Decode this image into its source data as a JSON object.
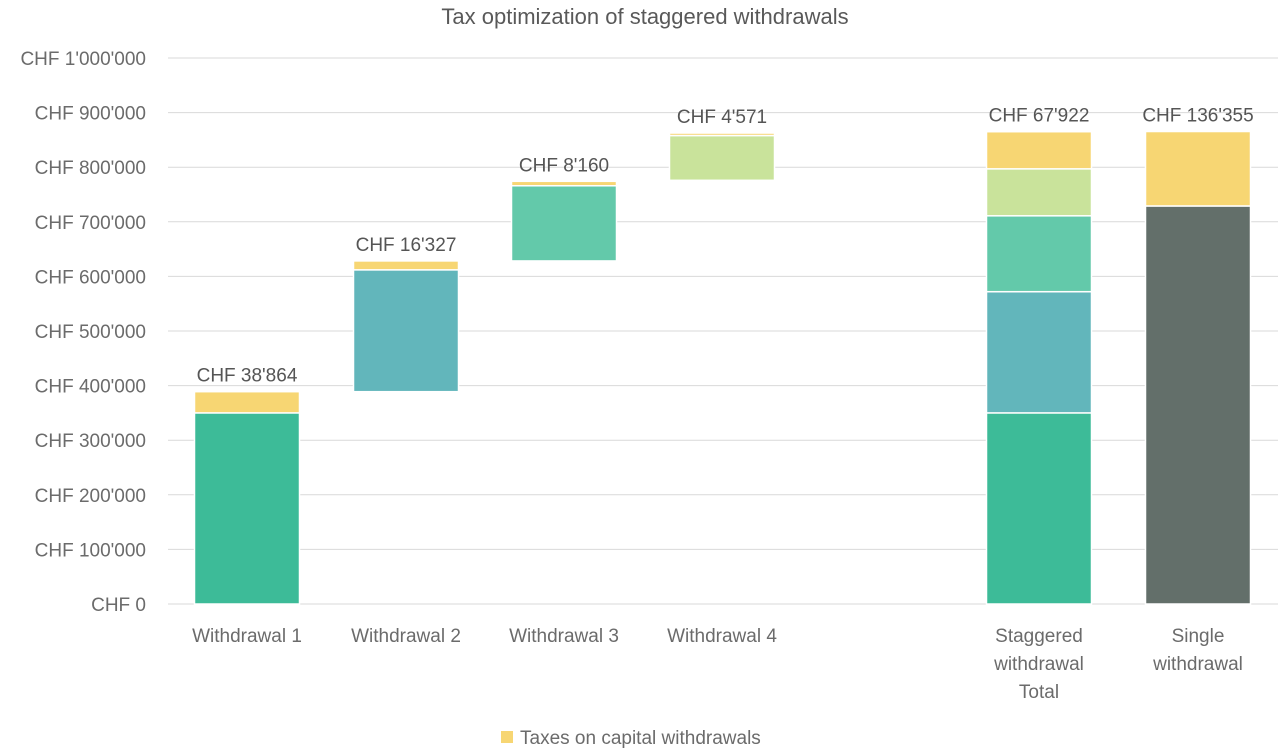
{
  "chart_data": {
    "type": "bar",
    "subtype": "waterfall-stacked",
    "title": "Tax optimization of staggered withdrawals",
    "ylim": [
      0,
      1000000
    ],
    "yticks": [
      0,
      100000,
      200000,
      300000,
      400000,
      500000,
      600000,
      700000,
      800000,
      900000,
      1000000
    ],
    "ytick_labels": [
      "CHF 0",
      "CHF 100'000",
      "CHF 200'000",
      "CHF 300'000",
      "CHF 400'000",
      "CHF 500'000",
      "CHF 600'000",
      "CHF 700'000",
      "CHF 800'000",
      "CHF 900'000",
      "CHF 1'000'000"
    ],
    "grid": true,
    "legend": {
      "position": "bottom-center",
      "entries": [
        {
          "label": "Taxes on capital withdrawals",
          "color": "#f7d673"
        }
      ]
    },
    "categories": [
      {
        "label_lines": [
          "Withdrawal 1"
        ],
        "data_label": "CHF 38'864",
        "segments": [
          {
            "start": 0,
            "end": 350000,
            "color": "#3dbb98"
          },
          {
            "start": 350000,
            "end": 388864,
            "color": "#f7d673"
          }
        ]
      },
      {
        "label_lines": [
          "Withdrawal 2"
        ],
        "data_label": "CHF 16'327",
        "segments": [
          {
            "start": 388864,
            "end": 612000,
            "color": "#62b6bb"
          },
          {
            "start": 612000,
            "end": 628327,
            "color": "#f7d673"
          }
        ]
      },
      {
        "label_lines": [
          "Withdrawal 3"
        ],
        "data_label": "CHF 8'160",
        "segments": [
          {
            "start": 628327,
            "end": 766000,
            "color": "#63c9aa"
          },
          {
            "start": 766000,
            "end": 774160,
            "color": "#f7d673"
          }
        ]
      },
      {
        "label_lines": [
          "Withdrawal 4"
        ],
        "data_label": "CHF 4'571",
        "segments": [
          {
            "start": 776000,
            "end": 858000,
            "color": "#c9e39b"
          },
          {
            "start": 858000,
            "end": 862571,
            "color": "#f7d673"
          }
        ]
      },
      {
        "label_lines": [
          "Staggered",
          "withdrawal",
          "Total"
        ],
        "data_label": "CHF 67'922",
        "segments": [
          {
            "start": 0,
            "end": 350000,
            "color": "#3dbb98"
          },
          {
            "start": 350000,
            "end": 572000,
            "color": "#62b6bb"
          },
          {
            "start": 572000,
            "end": 711000,
            "color": "#63c9aa"
          },
          {
            "start": 711000,
            "end": 797000,
            "color": "#c9e39b"
          },
          {
            "start": 797000,
            "end": 865000,
            "color": "#f7d673"
          }
        ]
      },
      {
        "label_lines": [
          "Single",
          "withdrawal"
        ],
        "data_label": "CHF 136'355",
        "segments": [
          {
            "start": 0,
            "end": 729000,
            "color": "#636f6a"
          },
          {
            "start": 729000,
            "end": 865355,
            "color": "#f7d673"
          }
        ]
      }
    ]
  }
}
